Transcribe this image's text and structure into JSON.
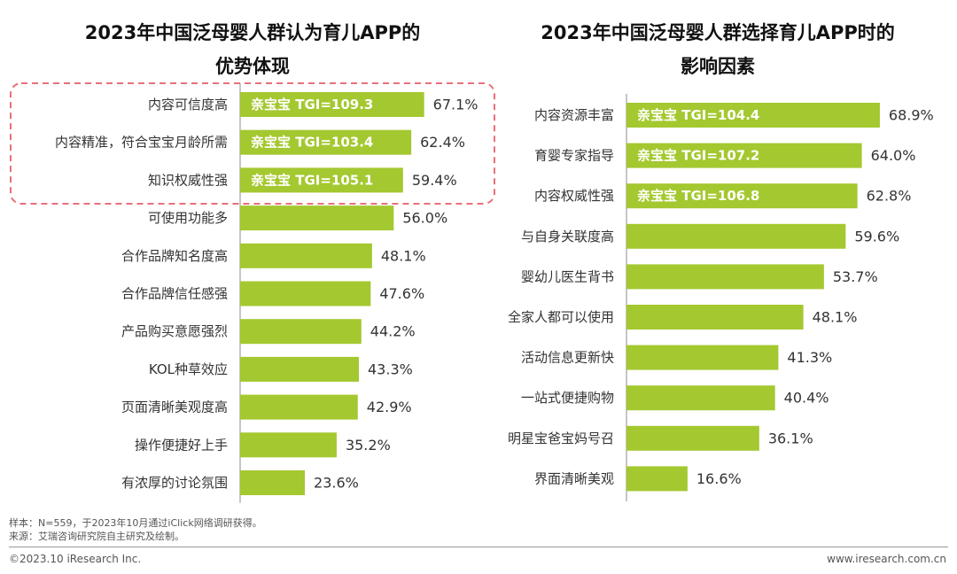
{
  "chart_data": [
    {
      "type": "bar",
      "orientation": "horizontal",
      "title": "2023年中国泛母婴人群认为育儿APP的优势体现",
      "title_lines": [
        "2023年中国泛母婴人群认为育儿APP的",
        "优势体现"
      ],
      "unit": "%",
      "xlim": [
        0,
        100
      ],
      "categories": [
        "内容可信度高",
        "内容精准，符合宝宝月龄所需",
        "知识权威性强",
        "可使用功能多",
        "合作品牌知名度高",
        "合作品牌信任感强",
        "产品购买意愿强烈",
        "KOL种草效应",
        "页面清晰美观度高",
        "操作便捷好上手",
        "有浓厚的讨论氛围"
      ],
      "values": [
        67.1,
        62.4,
        59.4,
        56.0,
        48.1,
        47.6,
        44.2,
        43.3,
        42.9,
        35.2,
        23.6
      ],
      "value_labels": [
        "67.1%",
        "62.4%",
        "59.4%",
        "56.0%",
        "48.1%",
        "47.6%",
        "44.2%",
        "43.3%",
        "42.9%",
        "35.2%",
        "23.6%"
      ],
      "bar_annotations": [
        "亲宝宝  TGI=109.3",
        "亲宝宝  TGI=103.4",
        "亲宝宝  TGI=105.1",
        "",
        "",
        "",
        "",
        "",
        "",
        "",
        ""
      ],
      "highlight_rows": [
        0,
        1,
        2
      ],
      "bar_color": "#a4c82f",
      "highlight_box_color": "#e8707a",
      "grid": false
    },
    {
      "type": "bar",
      "orientation": "horizontal",
      "title": "2023年中国泛母婴人群选择育儿APP时的影响因素",
      "title_lines": [
        "2023年中国泛母婴人群选择育儿APP时的",
        "影响因素"
      ],
      "unit": "%",
      "xlim": [
        0,
        100
      ],
      "categories": [
        "内容资源丰富",
        "育婴专家指导",
        "内容权威性强",
        "与自身关联度高",
        "婴幼儿医生背书",
        "全家人都可以使用",
        "活动信息更新快",
        "一站式便捷购物",
        "明星宝爸宝妈号召",
        "界面清晰美观"
      ],
      "values": [
        68.9,
        64.0,
        62.8,
        59.6,
        53.7,
        48.1,
        41.3,
        40.4,
        36.1,
        16.6
      ],
      "value_labels": [
        "68.9%",
        "64.0%",
        "62.8%",
        "59.6%",
        "53.7%",
        "48.1%",
        "41.3%",
        "40.4%",
        "36.1%",
        "16.6%"
      ],
      "bar_annotations": [
        "亲宝宝  TGI=104.4",
        "亲宝宝  TGI=107.2",
        "亲宝宝  TGI=106.8",
        "",
        "",
        "",
        "",
        "",
        "",
        ""
      ],
      "bar_color": "#a4c82f",
      "grid": false
    }
  ],
  "footnotes": {
    "sample": "样本：N=559，于2023年10月通过iClick网络调研获得。",
    "source": "来源：艾瑞咨询研究院自主研究及绘制。"
  },
  "footer": {
    "copyright": "©2023.10 iResearch Inc.",
    "website": "www.iresearch.com.cn"
  }
}
